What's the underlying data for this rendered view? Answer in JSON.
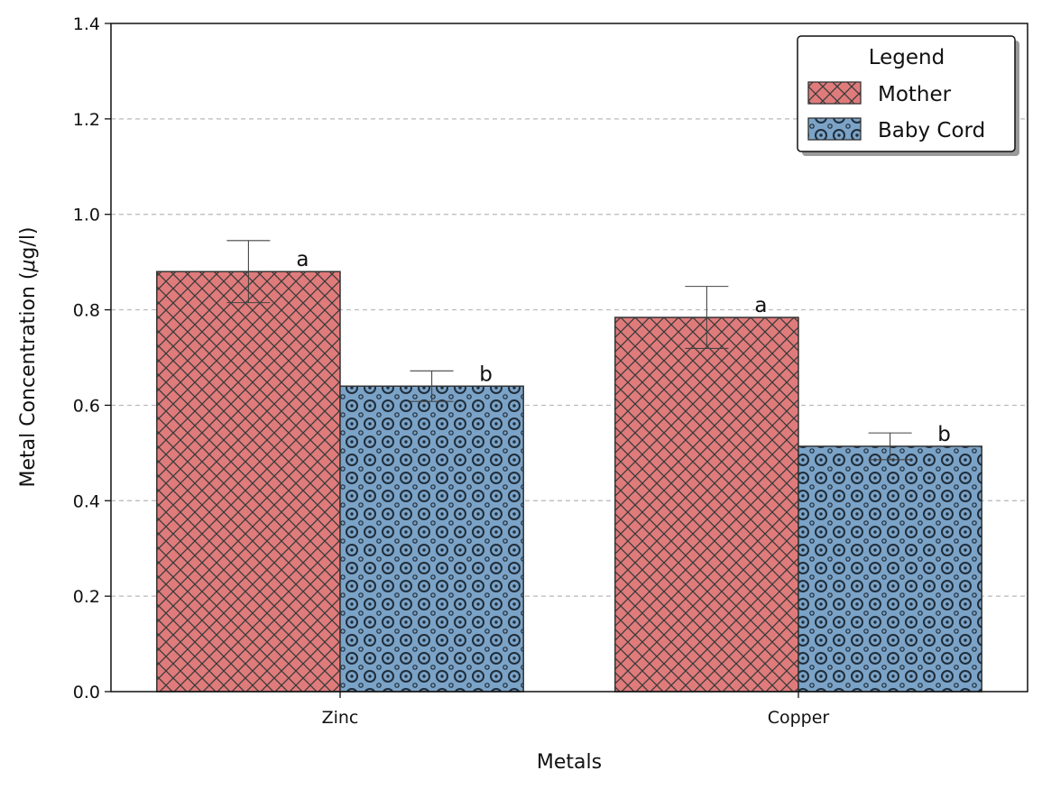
{
  "chart_data": {
    "type": "bar",
    "categories": [
      "Zinc",
      "Copper"
    ],
    "series": [
      {
        "name": "Mother",
        "values": [
          0.88,
          0.784
        ],
        "errors": [
          0.065,
          0.065
        ],
        "significance": [
          "a",
          "a"
        ],
        "color": "#e07b7b",
        "pattern": "crosshatch"
      },
      {
        "name": "Baby Cord",
        "values": [
          0.64,
          0.514
        ],
        "errors": [
          0.032,
          0.028
        ],
        "significance": [
          "b",
          "b"
        ],
        "color": "#7ba3c7",
        "pattern": "circles"
      }
    ],
    "xlabel": "Metals",
    "ylabel": "Metal Concentration (μg/l)",
    "ylabel_prefix": "Metal Concentration (",
    "ylabel_unit_mu": "μ",
    "ylabel_unit_rest": "g/l)",
    "ylim": [
      0,
      1.4
    ],
    "yticks": [
      "0.0",
      "0.2",
      "0.4",
      "0.6",
      "0.8",
      "1.0",
      "1.2",
      "1.4"
    ],
    "grid": "y-dashed",
    "legend": {
      "title": "Legend",
      "placement": "top-right"
    }
  }
}
